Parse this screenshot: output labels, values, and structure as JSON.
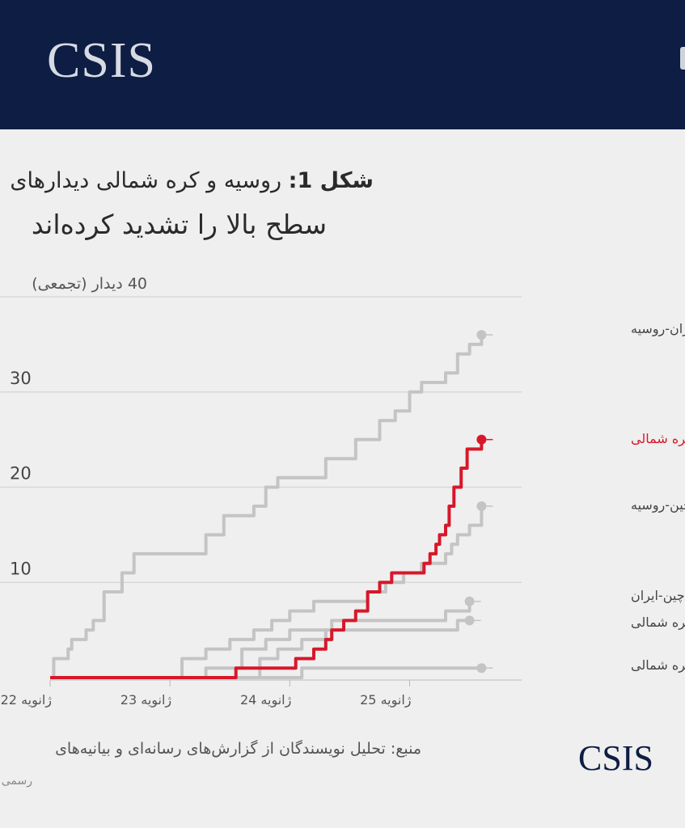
{
  "header": {
    "logo": "CSIS"
  },
  "footer": {
    "logo": "CSIS",
    "source_line1": "منبع: تحلیل نویسندگان از گزارش‌های رسانه‌ای و بیانیه‌های",
    "source_line2": "رسمی"
  },
  "chart_data": {
    "type": "line",
    "title_prefix": "شکل 1:",
    "title_line1": "روسیه و کره شمالی دیدارهای",
    "title_line2": "سطح بالا را تشدید کرده‌اند",
    "ylabel": "40 دیدار (تجمعی)",
    "ylim": [
      0,
      40
    ],
    "yticks": [
      10,
      20,
      30
    ],
    "xlim": [
      22,
      25.82
    ],
    "xticks": [
      {
        "value": 22,
        "label": "22 ژانویه"
      },
      {
        "value": 23,
        "label": "23 ژانویه"
      },
      {
        "value": 24,
        "label": "24 ژانویه"
      },
      {
        "value": 25,
        "label": "25 ژانویه"
      }
    ],
    "grid": true,
    "colors": {
      "highlight": "#d7182a",
      "muted": "#c4c4c4",
      "axis": "#bbbbbb"
    },
    "series": [
      {
        "name": "ایران-روسیه",
        "highlight": false,
        "points": [
          [
            22,
            0
          ],
          [
            22.03,
            2
          ],
          [
            22.15,
            3
          ],
          [
            22.18,
            4
          ],
          [
            22.3,
            5
          ],
          [
            22.36,
            6
          ],
          [
            22.45,
            9
          ],
          [
            22.6,
            11
          ],
          [
            22.7,
            13
          ],
          [
            23.1,
            13
          ],
          [
            23.3,
            15
          ],
          [
            23.45,
            17
          ],
          [
            23.7,
            18
          ],
          [
            23.8,
            20
          ],
          [
            23.9,
            21
          ],
          [
            24.3,
            23
          ],
          [
            24.55,
            25
          ],
          [
            24.75,
            27
          ],
          [
            24.88,
            28
          ],
          [
            25.0,
            30
          ],
          [
            25.1,
            31
          ],
          [
            25.3,
            32
          ],
          [
            25.4,
            34
          ],
          [
            25.5,
            35
          ],
          [
            25.6,
            36
          ]
        ]
      },
      {
        "name": "روسیه-کره شمالی",
        "highlight": true,
        "points": [
          [
            22,
            0
          ],
          [
            23.55,
            0
          ],
          [
            23.55,
            1
          ],
          [
            23.97,
            1
          ],
          [
            24.05,
            2
          ],
          [
            24.2,
            3
          ],
          [
            24.28,
            3
          ],
          [
            24.3,
            4
          ],
          [
            24.35,
            5
          ],
          [
            24.45,
            6
          ],
          [
            24.55,
            7
          ],
          [
            24.62,
            7
          ],
          [
            24.65,
            9
          ],
          [
            24.72,
            9
          ],
          [
            24.75,
            10
          ],
          [
            24.85,
            11
          ],
          [
            25.05,
            11
          ],
          [
            25.12,
            12
          ],
          [
            25.17,
            13
          ],
          [
            25.22,
            14
          ],
          [
            25.25,
            15
          ],
          [
            25.3,
            16
          ],
          [
            25.33,
            18
          ],
          [
            25.37,
            20
          ],
          [
            25.43,
            22
          ],
          [
            25.48,
            24
          ],
          [
            25.6,
            24
          ],
          [
            25.6,
            25
          ]
        ]
      },
      {
        "name": "چین-روسیه",
        "highlight": false,
        "points": [
          [
            22,
            0
          ],
          [
            22.9,
            0
          ],
          [
            23.1,
            2
          ],
          [
            23.3,
            3
          ],
          [
            23.5,
            4
          ],
          [
            23.7,
            5
          ],
          [
            23.85,
            6
          ],
          [
            24.0,
            7
          ],
          [
            24.2,
            8
          ],
          [
            24.4,
            8
          ],
          [
            24.65,
            9
          ],
          [
            24.8,
            10
          ],
          [
            24.95,
            11
          ],
          [
            25.1,
            12
          ],
          [
            25.3,
            13
          ],
          [
            25.35,
            14
          ],
          [
            25.4,
            15
          ],
          [
            25.5,
            16
          ],
          [
            25.6,
            18
          ]
        ]
      },
      {
        "name": "چین-ایران",
        "highlight": false,
        "points": [
          [
            22,
            0
          ],
          [
            23.1,
            0
          ],
          [
            23.3,
            1
          ],
          [
            23.6,
            3
          ],
          [
            23.8,
            4
          ],
          [
            24.0,
            5
          ],
          [
            24.2,
            5
          ],
          [
            24.35,
            6
          ],
          [
            24.6,
            6
          ],
          [
            25.2,
            6
          ],
          [
            25.3,
            7
          ],
          [
            25.45,
            7
          ],
          [
            25.5,
            8
          ]
        ]
      },
      {
        "name": "چین-کره شمالی",
        "highlight": false,
        "points": [
          [
            22,
            0
          ],
          [
            23.6,
            0
          ],
          [
            23.75,
            2
          ],
          [
            23.9,
            3
          ],
          [
            24.1,
            4
          ],
          [
            24.3,
            5
          ],
          [
            25.35,
            5
          ],
          [
            25.4,
            6
          ],
          [
            25.5,
            6
          ]
        ]
      },
      {
        "name": "ایران-کره شمالی",
        "highlight": false,
        "points": [
          [
            22,
            0
          ],
          [
            24.05,
            0
          ],
          [
            24.1,
            1
          ],
          [
            25.6,
            1
          ]
        ]
      }
    ]
  }
}
